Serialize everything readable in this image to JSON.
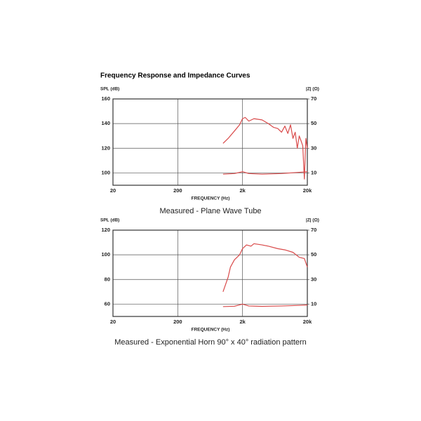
{
  "title": "Frequency Response and Impedance Curves",
  "chart_data": [
    {
      "type": "line",
      "caption": "Measured - Plane Wave Tube",
      "y_label": "SPL (dB)",
      "y2_label": "|Z| (Ω)",
      "x_label": "FREQUENCY (Hz)",
      "log_x": true,
      "grid": true,
      "xlim": [
        20,
        20000
      ],
      "xticks": [
        20,
        200,
        {
          "value": 2000,
          "label": "2k"
        },
        {
          "value": 20000,
          "label": "20k"
        }
      ],
      "ylim": [
        90,
        160
      ],
      "yticks": [
        160,
        140,
        120,
        100
      ],
      "y2lim": [
        0,
        70
      ],
      "y2ticks": [
        70,
        50,
        30,
        10
      ],
      "series": [
        {
          "color": "#d94a4a",
          "x": [
            1000,
            1200,
            1500,
            1800,
            2000,
            2200,
            2500,
            3000,
            4000,
            5000,
            6000,
            7000,
            8000,
            9000,
            10000,
            11000,
            12000,
            13000,
            14000,
            15000,
            16000,
            17000,
            18000,
            19000,
            20000
          ],
          "values": [
            124,
            128,
            134,
            139,
            144,
            145,
            142,
            144,
            143,
            140,
            137,
            136,
            133,
            138,
            132,
            139,
            128,
            133,
            120,
            130,
            126,
            122,
            95,
            128,
            120
          ]
        },
        {
          "color": "#d94a4a",
          "axis": "y2",
          "x": [
            1000,
            1500,
            2000,
            2500,
            4000,
            8000,
            15000,
            20000
          ],
          "values": [
            9,
            9.5,
            11,
            9.5,
            9,
            9.5,
            10.5,
            11
          ]
        }
      ]
    },
    {
      "type": "line",
      "caption": "Measured - Exponential Horn 90° x 40° radiation pattern",
      "y_label": "SPL (dB)",
      "y2_label": "|Z| (Ω)",
      "x_label": "FREQUENCY (Hz)",
      "log_x": true,
      "grid": true,
      "xlim": [
        20,
        20000
      ],
      "xticks": [
        20,
        200,
        {
          "value": 2000,
          "label": "2k"
        },
        {
          "value": 20000,
          "label": "20k"
        }
      ],
      "ylim": [
        50,
        120
      ],
      "yticks": [
        120,
        100,
        80,
        60
      ],
      "y2lim": [
        0,
        70
      ],
      "y2ticks": [
        70,
        50,
        30,
        10
      ],
      "series": [
        {
          "color": "#d94a4a",
          "x": [
            1000,
            1200,
            1300,
            1500,
            1800,
            2000,
            2300,
            2700,
            3000,
            4000,
            5000,
            7000,
            9000,
            12000,
            15000,
            18000,
            20000
          ],
          "values": [
            70,
            82,
            90,
            96,
            100,
            105,
            108,
            107,
            109,
            108,
            107,
            105,
            104,
            102,
            98,
            97,
            90
          ]
        },
        {
          "color": "#d94a4a",
          "axis": "y2",
          "x": [
            1000,
            1500,
            2000,
            2500,
            4000,
            8000,
            15000,
            20000
          ],
          "values": [
            8,
            8.3,
            10,
            8.5,
            8.2,
            8.5,
            9,
            9.3
          ]
        }
      ]
    }
  ]
}
